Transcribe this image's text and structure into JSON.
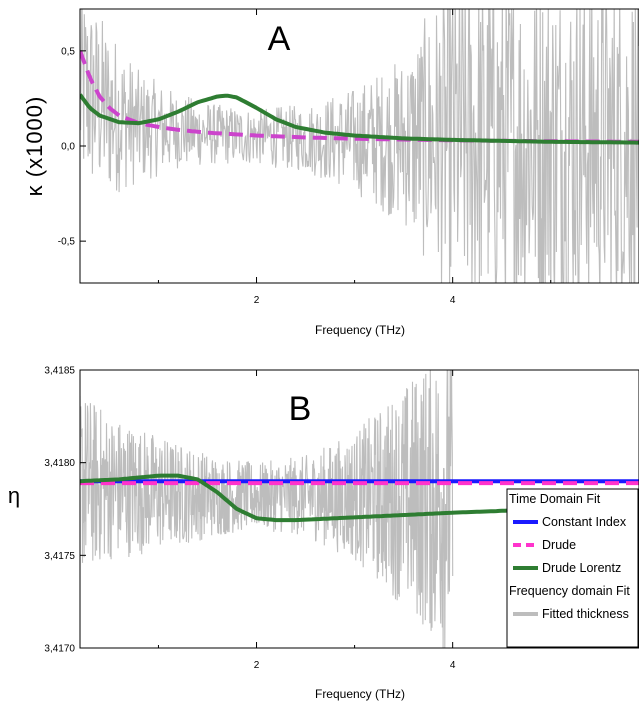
{
  "chart_data": [
    {
      "type": "line",
      "panel_label": "A",
      "xlabel": "Frequency (THz)",
      "ylabel": "κ (x1000)",
      "xlim": [
        0.2,
        5.9
      ],
      "ylim": [
        -0.72,
        0.72
      ],
      "xticks": [
        2,
        4
      ],
      "xtick_labels": [
        "2",
        "4"
      ],
      "yticks": [
        -0.5,
        0.0,
        0.5
      ],
      "ytick_labels": [
        "-0,5",
        "0,0",
        "0,5"
      ],
      "grid": false,
      "series": [
        {
          "name": "Fitted thickness",
          "color": "#bdbdbd",
          "style": "noisy-band",
          "x": [
            0.2,
            0.5,
            0.8,
            1.2,
            1.6,
            2.0,
            2.5,
            3.0,
            3.5,
            4.0,
            4.5,
            5.0,
            5.9
          ],
          "y": [
            0.3,
            0.18,
            0.1,
            0.08,
            0.06,
            0.05,
            0.04,
            0.03,
            0.03,
            0.03,
            0.02,
            0.02,
            0.02
          ],
          "spread": [
            0.55,
            0.45,
            0.3,
            0.2,
            0.16,
            0.15,
            0.18,
            0.28,
            0.45,
            0.9,
            0.9,
            0.9,
            0.9
          ]
        },
        {
          "name": "Drude",
          "color": "#cc44cc",
          "style": "dashed",
          "x": [
            0.2,
            0.3,
            0.4,
            0.5,
            0.6,
            0.8,
            1.0,
            1.2,
            1.5,
            2.0,
            2.5,
            3.0,
            4.0,
            5.0,
            5.9
          ],
          "y": [
            0.5,
            0.36,
            0.26,
            0.2,
            0.16,
            0.12,
            0.1,
            0.085,
            0.07,
            0.055,
            0.045,
            0.038,
            0.03,
            0.025,
            0.022
          ]
        },
        {
          "name": "Drude Lorentz",
          "color": "#2e7d32",
          "style": "solid",
          "x": [
            0.2,
            0.3,
            0.4,
            0.6,
            0.8,
            1.0,
            1.2,
            1.4,
            1.6,
            1.7,
            1.8,
            2.0,
            2.2,
            2.4,
            2.7,
            3.0,
            3.5,
            4.0,
            4.5,
            5.0,
            5.9
          ],
          "y": [
            0.27,
            0.2,
            0.16,
            0.125,
            0.12,
            0.14,
            0.18,
            0.23,
            0.26,
            0.265,
            0.255,
            0.2,
            0.14,
            0.1,
            0.07,
            0.055,
            0.04,
            0.032,
            0.027,
            0.022,
            0.018
          ]
        }
      ]
    },
    {
      "type": "line",
      "panel_label": "B",
      "xlabel": "Frequency (THz)",
      "ylabel": "η",
      "xlim": [
        0.2,
        5.9
      ],
      "ylim": [
        3.417,
        3.4185
      ],
      "xticks": [
        2,
        4
      ],
      "xtick_labels": [
        "2",
        "4"
      ],
      "yticks": [
        3.417,
        3.4175,
        3.418,
        3.4185
      ],
      "ytick_labels": [
        "3,4170",
        "3,4175",
        "3,4180",
        "3,4185"
      ],
      "grid": false,
      "legend": {
        "placement": "right",
        "entries": [
          {
            "text": "Time Domain Fit",
            "kind": "header"
          },
          {
            "text": "Constant Index",
            "color": "#1a1aff",
            "style": "solid"
          },
          {
            "text": "Drude",
            "color": "#ff33cc",
            "style": "dashed"
          },
          {
            "text": "Drude Lorentz",
            "color": "#2e7d32",
            "style": "solid"
          },
          {
            "text": "Frequency domain Fit",
            "kind": "header"
          },
          {
            "text": "Fitted thickness",
            "color": "#bdbdbd",
            "style": "solid"
          }
        ]
      },
      "series": [
        {
          "name": "Fitted thickness",
          "color": "#bdbdbd",
          "style": "noisy-band",
          "x": [
            0.2,
            0.5,
            0.8,
            1.2,
            1.6,
            2.0,
            2.5,
            3.0,
            3.5,
            4.0
          ],
          "y": [
            3.4179,
            3.41787,
            3.41785,
            3.41783,
            3.41782,
            3.41782,
            3.41782,
            3.41782,
            3.41782,
            3.41782
          ],
          "spread": [
            0.0005,
            0.0004,
            0.00035,
            0.00028,
            0.00022,
            0.00018,
            0.00022,
            0.00035,
            0.0006,
            0.0009
          ]
        },
        {
          "name": "Constant Index",
          "color": "#1a1aff",
          "style": "solid",
          "x": [
            0.2,
            5.9
          ],
          "y": [
            3.4179,
            3.4179
          ]
        },
        {
          "name": "Drude",
          "color": "#ff33cc",
          "style": "dashed",
          "x": [
            0.2,
            5.9
          ],
          "y": [
            3.41789,
            3.41789
          ]
        },
        {
          "name": "Drude Lorentz",
          "color": "#2e7d32",
          "style": "solid",
          "x": [
            0.2,
            0.6,
            1.0,
            1.2,
            1.4,
            1.6,
            1.8,
            2.0,
            2.2,
            2.4,
            2.8,
            3.2,
            3.6,
            4.0,
            4.5,
            5.0,
            5.5,
            5.9
          ],
          "y": [
            3.4179,
            3.41791,
            3.41793,
            3.41793,
            3.41791,
            3.41784,
            3.41775,
            3.4177,
            3.41769,
            3.41769,
            3.4177,
            3.41771,
            3.41772,
            3.41773,
            3.41774,
            3.41775,
            3.41775,
            3.41776
          ]
        }
      ]
    }
  ]
}
